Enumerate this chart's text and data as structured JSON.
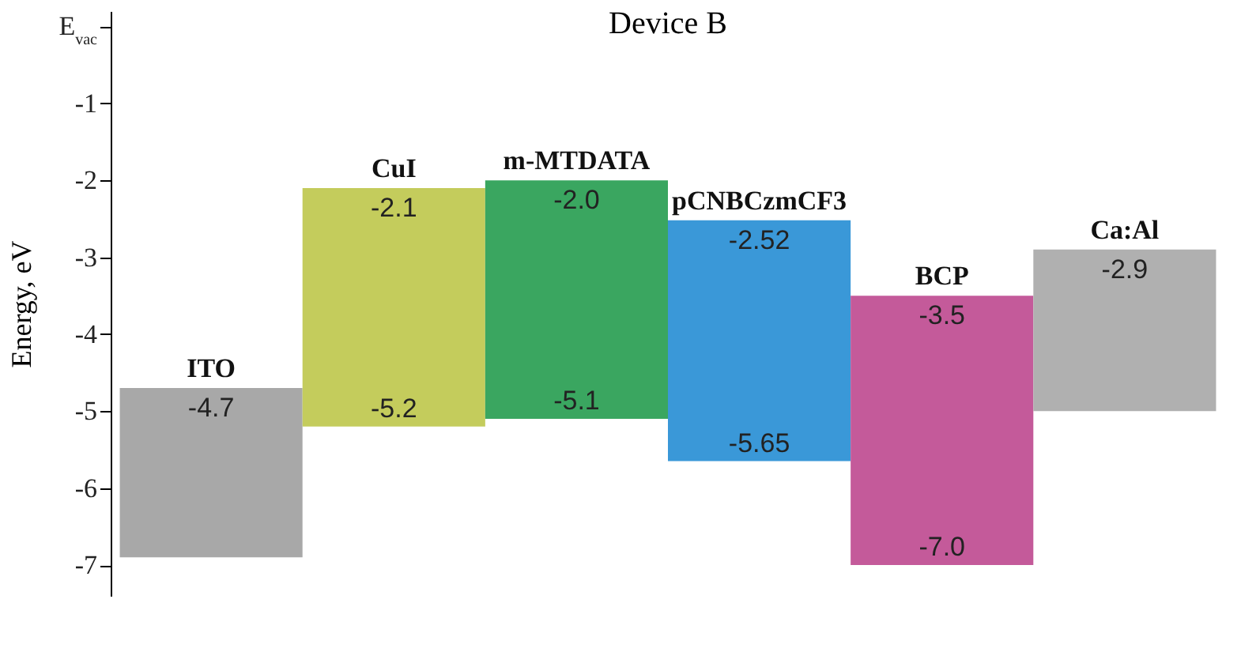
{
  "chart_data": {
    "type": "bar",
    "title": "Device B",
    "ylabel": "Energy, eV",
    "categories": [
      "ITO",
      "CuI",
      "m-MTDATA",
      "pCNBCzmCF3",
      "BCP",
      "Ca:Al"
    ],
    "base": [
      -6.9,
      -5.2,
      -5.1,
      -5.65,
      -7.0,
      -5.0
    ],
    "values": [
      2.2,
      3.1,
      3.1,
      3.13,
      3.5,
      2.1
    ],
    "colors": [
      "#a8a8a8",
      "#c4cc5c",
      "#3aa660",
      "#3a98d8",
      "#c45a9a",
      "#b0b0b0"
    ],
    "ylim": [
      -7.4,
      0.2
    ],
    "yticks": [
      {
        "value": 0,
        "label": "E$_{vac}$"
      },
      -1,
      -2,
      -3,
      -4,
      -5,
      -6,
      -7
    ],
    "tick_labels": "y",
    "grid": false,
    "legend": false,
    "annotations": [
      {
        "text": "-4.7",
        "x": "ITO",
        "y": -4.7
      },
      {
        "text": "-2.1",
        "x": "CuI",
        "y": -2.1
      },
      {
        "text": "-5.2",
        "x": "CuI",
        "y": -5.2
      },
      {
        "text": "-2.0",
        "x": "m-MTDATA",
        "y": -2.0
      },
      {
        "text": "-5.1",
        "x": "m-MTDATA",
        "y": -5.1
      },
      {
        "text": "-2.52",
        "x": "pCNBCzmCF3",
        "y": -2.52
      },
      {
        "text": "-5.65",
        "x": "pCNBCzmCF3",
        "y": -5.65
      },
      {
        "text": "-3.5",
        "x": "BCP",
        "y": -3.5
      },
      {
        "text": "-7.0",
        "x": "BCP",
        "y": -7.0
      },
      {
        "text": "-2.9",
        "x": "Ca:Al",
        "y": -2.9
      }
    ]
  }
}
